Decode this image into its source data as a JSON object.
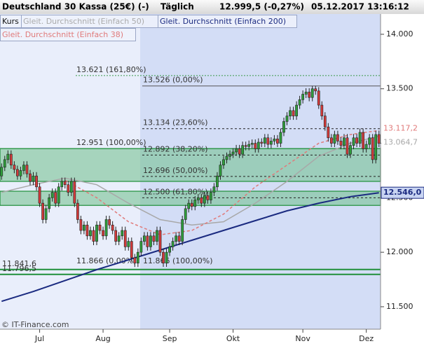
{
  "chart_data": {
    "type": "candlestick",
    "title": "Deutschland 30 Kassa (25€) (-)",
    "interval": "Täglich",
    "quote": "12.999,5 (-0,27%)",
    "timestamp": "05.12.2017 13:16:12",
    "candles": {
      "name": "Kurs",
      "up_color": "#2e9e3a",
      "down_color": "#d43a3a",
      "open": [
        12700,
        12780,
        12850,
        12900,
        12800,
        12760,
        12700,
        12750,
        12800,
        12720,
        12650,
        12700,
        12600,
        12450,
        12300,
        12400,
        12500,
        12550,
        12450,
        12600,
        12650,
        12620,
        12550,
        12650,
        12450,
        12300,
        12200,
        12250,
        12150,
        12200,
        12100,
        12250,
        12200,
        12150,
        12300,
        12250,
        12200,
        12100,
        12150,
        12200,
        12050,
        12100,
        11950,
        11900,
        12000,
        12100,
        12150,
        12050,
        12150,
        12100,
        12200,
        12000,
        11900,
        12000,
        12050,
        12100,
        12150,
        12100,
        12300,
        12400,
        12450,
        12420,
        12480,
        12500,
        12450,
        12520,
        12480,
        12550,
        12600,
        12700,
        12800,
        12850,
        12880,
        12900,
        12920,
        12950,
        12900,
        12980,
        12970,
        12990,
        13000,
        12950,
        13010,
        13000,
        13050,
        12990,
        13020,
        13040,
        13000,
        13100,
        13200,
        13250,
        13300,
        13250,
        13350,
        13400,
        13450,
        13470,
        13420,
        13500,
        13480,
        13350,
        13250,
        13150,
        13050,
        13000,
        13080,
        13020,
        12980,
        13050,
        12900,
        12980,
        13050,
        13000,
        13100,
        12950,
        12990,
        13050,
        12850,
        13080
      ],
      "high": [
        12815,
        12885,
        12935,
        12935,
        12835,
        12795,
        12785,
        12835,
        12835,
        12755,
        12735,
        12735,
        12635,
        12485,
        12435,
        12535,
        12585,
        12585,
        12635,
        12685,
        12685,
        12655,
        12685,
        12685,
        12485,
        12335,
        12285,
        12285,
        12235,
        12235,
        12285,
        12285,
        12235,
        12335,
        12335,
        12285,
        12235,
        12185,
        12235,
        12235,
        12135,
        12135,
        11985,
        12035,
        12135,
        12185,
        12185,
        12185,
        12185,
        12235,
        12235,
        12035,
        12035,
        12085,
        12135,
        12185,
        12185,
        12335,
        12435,
        12485,
        12485,
        12515,
        12535,
        12535,
        12555,
        12555,
        12585,
        12635,
        12735,
        12835,
        12885,
        12915,
        12935,
        12955,
        12985,
        12985,
        13015,
        13015,
        13025,
        13035,
        13035,
        13045,
        13045,
        13085,
        13085,
        13055,
        13075,
        13075,
        13135,
        13235,
        13285,
        13335,
        13335,
        13385,
        13435,
        13485,
        13505,
        13505,
        13526,
        13526,
        13515,
        13385,
        13285,
        13185,
        13085,
        13115,
        13115,
        13055,
        13085,
        13085,
        13015,
        13085,
        13085,
        13135,
        13135,
        13025,
        13085,
        13085,
        13115,
        13115
      ],
      "low": [
        12665,
        12745,
        12815,
        12765,
        12725,
        12665,
        12665,
        12715,
        12685,
        12615,
        12615,
        12565,
        12415,
        12265,
        12265,
        12365,
        12465,
        12415,
        12415,
        12565,
        12585,
        12515,
        12515,
        12415,
        12265,
        12165,
        12165,
        12115,
        12115,
        12065,
        12065,
        12165,
        12115,
        12115,
        12215,
        12165,
        12065,
        12065,
        12115,
        12015,
        12015,
        11915,
        11865,
        11865,
        11965,
        12065,
        12015,
        12015,
        12065,
        12065,
        11965,
        11866,
        11866,
        11965,
        12015,
        12065,
        12065,
        12065,
        12265,
        12365,
        12385,
        12385,
        12445,
        12415,
        12415,
        12445,
        12445,
        12515,
        12565,
        12665,
        12765,
        12815,
        12845,
        12865,
        12885,
        12865,
        12865,
        12935,
        12935,
        12955,
        12915,
        12915,
        12965,
        12965,
        12955,
        12955,
        12985,
        12965,
        12965,
        13065,
        13165,
        13215,
        13215,
        13215,
        13315,
        13365,
        13415,
        13385,
        13385,
        13445,
        13315,
        13215,
        13115,
        13015,
        12965,
        12965,
        12985,
        12945,
        12945,
        12865,
        12865,
        12945,
        12965,
        12965,
        12915,
        12915,
        12955,
        12815,
        12815,
        12965
      ],
      "close": [
        12780,
        12850,
        12900,
        12800,
        12760,
        12700,
        12750,
        12800,
        12720,
        12650,
        12700,
        12600,
        12450,
        12300,
        12400,
        12500,
        12550,
        12450,
        12600,
        12650,
        12620,
        12550,
        12650,
        12450,
        12300,
        12200,
        12250,
        12150,
        12200,
        12100,
        12250,
        12200,
        12150,
        12300,
        12250,
        12200,
        12100,
        12150,
        12200,
        12050,
        12100,
        11950,
        11900,
        12000,
        12100,
        12150,
        12050,
        12150,
        12100,
        12200,
        12000,
        11900,
        12000,
        12050,
        12100,
        12150,
        12100,
        12300,
        12400,
        12450,
        12420,
        12480,
        12500,
        12450,
        12520,
        12480,
        12550,
        12600,
        12700,
        12800,
        12850,
        12880,
        12900,
        12920,
        12950,
        12900,
        12980,
        12970,
        12990,
        13000,
        12950,
        13010,
        13000,
        13050,
        12990,
        13020,
        13040,
        13000,
        13100,
        13200,
        13250,
        13300,
        13250,
        13350,
        13400,
        13450,
        13470,
        13420,
        13500,
        13480,
        13350,
        13250,
        13150,
        13050,
        13000,
        13080,
        13020,
        12980,
        13050,
        12900,
        12980,
        13050,
        13000,
        13100,
        12950,
        12990,
        13050,
        12850,
        13080,
        12999.5
      ]
    },
    "series": [
      {
        "name": "Gleit. Durchschnitt (Einfach 50)",
        "color": "#a8a8a8",
        "x": [
          0,
          10,
          20,
          30,
          40,
          50,
          60,
          70,
          80,
          90,
          100,
          110,
          119
        ],
        "values": [
          12550,
          12620,
          12680,
          12620,
          12450,
          12300,
          12250,
          12280,
          12450,
          12650,
          12880,
          13000,
          13064.7
        ],
        "end_label": "13.064,7"
      },
      {
        "name": "Gleit. Durchschnitt (Einfach 200)",
        "color": "#1a2a80",
        "x": [
          0,
          10,
          20,
          30,
          40,
          50,
          60,
          70,
          80,
          90,
          100,
          110,
          119
        ],
        "values": [
          11550,
          11640,
          11740,
          11840,
          11930,
          12020,
          12110,
          12200,
          12290,
          12380,
          12450,
          12510,
          12546
        ],
        "end_label": "12.546,0"
      },
      {
        "name": "Gleit. Durchschnitt (Einfach 38)",
        "color": "#e07a7a",
        "x": [
          20,
          30,
          40,
          50,
          60,
          70,
          80,
          90,
          100,
          110,
          119
        ],
        "values": [
          12660,
          12500,
          12280,
          12160,
          12200,
          12350,
          12600,
          12800,
          13000,
          13080,
          13117.2
        ],
        "end_label": "13.117,2"
      }
    ],
    "levels": [
      {
        "value": 13621,
        "label": "13.621 (161,80%)"
      },
      {
        "value": 13526,
        "label": "13.526 (0,00%)"
      },
      {
        "value": 13134,
        "label": "13.134 (23,60%)"
      },
      {
        "value": 12951,
        "label": "12.951 (100,00%)"
      },
      {
        "value": 12892,
        "label": "12.892 (38,20%)"
      },
      {
        "value": 12696,
        "label": "12.696 (50,00%)"
      },
      {
        "value": 12500,
        "label": "12.500 (61,80%)"
      },
      {
        "value": 11866,
        "label": "11.866 (0,00%)"
      },
      {
        "value": 11866,
        "label": "11.866 (100,00%)"
      },
      {
        "value": 11841.6,
        "label": "11.841,6"
      },
      {
        "value": 11796.5,
        "label": "11.796,5"
      }
    ],
    "zones": [
      [
        12951,
        12650
      ],
      [
        12560,
        12430
      ]
    ],
    "xlim": [
      -0.5,
      119.5
    ],
    "xticks": [
      {
        "value": 12,
        "label": "Jul"
      },
      {
        "value": 32,
        "label": "Aug"
      },
      {
        "value": 53,
        "label": "Sep"
      },
      {
        "value": 73,
        "label": "Okt"
      },
      {
        "value": 95,
        "label": "Nov"
      },
      {
        "value": 115,
        "label": "Dez"
      }
    ],
    "ylim": [
      11294,
      14186
    ],
    "yticks": [
      {
        "value": 11500,
        "label": "11.500"
      },
      {
        "value": 12000,
        "label": "12.000"
      },
      {
        "value": 12500,
        "label": "12.500"
      },
      {
        "value": 13000,
        "label": "13.000"
      },
      {
        "value": 13500,
        "label": "13.500"
      },
      {
        "value": 14000,
        "label": "14.000"
      }
    ],
    "footer": "© IT-Finance.com"
  }
}
